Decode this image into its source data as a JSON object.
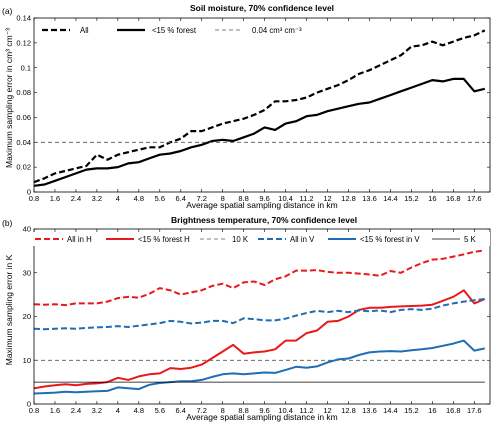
{
  "chart_data": [
    {
      "type": "line",
      "panel": "(a)",
      "title": "Soil moisture, 70% confidence level",
      "xlabel": "Average spatial sampling distance in km",
      "ylabel": "Maximum sampling error in cm³ cm⁻³",
      "xlim": [
        0.8,
        18.2
      ],
      "ylim": [
        0,
        0.14
      ],
      "xticks": [
        0.8,
        1.6,
        2.4,
        3.2,
        4,
        4.8,
        5.6,
        6.4,
        7.2,
        8,
        8.8,
        9.6,
        10.4,
        11.2,
        12,
        12.8,
        13.6,
        14.4,
        15.2,
        16,
        16.8,
        17.6
      ],
      "xtick_labels": [
        "0.8",
        "1.6",
        "2.4",
        "3.2",
        "4",
        "4.8",
        "5.6",
        "6.4",
        "7.2",
        "8",
        "8.8",
        "9.6",
        "10.4",
        "11.2",
        "12",
        "12.8",
        "13.6",
        "14.4",
        "15.2",
        "16",
        "16.8",
        "17.6"
      ],
      "yticks": [
        0,
        0.02,
        0.04,
        0.06,
        0.08,
        0.1,
        0.12,
        0.14
      ],
      "ytick_labels": [
        "0",
        "0.02",
        "0.04",
        "0.06",
        "0.08",
        "0.1",
        "0.12",
        "0.14"
      ],
      "grid": false,
      "legend_position": "top",
      "x": [
        0.8,
        1.2,
        1.6,
        2.0,
        2.4,
        2.8,
        3.2,
        3.6,
        4.0,
        4.4,
        4.8,
        5.2,
        5.6,
        6.0,
        6.4,
        6.8,
        7.2,
        7.6,
        8.0,
        8.4,
        8.8,
        9.2,
        9.6,
        10.0,
        10.4,
        10.8,
        11.2,
        11.6,
        12.0,
        12.4,
        12.8,
        13.2,
        13.6,
        14.0,
        14.4,
        14.8,
        15.2,
        15.6,
        16.0,
        16.4,
        16.8,
        17.2,
        17.6,
        18.0
      ],
      "series": [
        {
          "name": "All",
          "style": "dashed",
          "color": "#000000",
          "width": 2.2,
          "values": [
            0.008,
            0.011,
            0.015,
            0.017,
            0.019,
            0.021,
            0.03,
            0.026,
            0.03,
            0.032,
            0.034,
            0.036,
            0.036,
            0.04,
            0.043,
            0.049,
            0.049,
            0.052,
            0.055,
            0.057,
            0.059,
            0.062,
            0.066,
            0.073,
            0.073,
            0.074,
            0.076,
            0.08,
            0.083,
            0.086,
            0.09,
            0.095,
            0.098,
            0.102,
            0.106,
            0.11,
            0.117,
            0.118,
            0.121,
            0.118,
            0.121,
            0.124,
            0.126,
            0.13
          ]
        },
        {
          "name": "<15 % forest",
          "style": "solid",
          "color": "#000000",
          "width": 2.2,
          "values": [
            0.005,
            0.006,
            0.009,
            0.012,
            0.015,
            0.018,
            0.019,
            0.019,
            0.02,
            0.023,
            0.024,
            0.027,
            0.03,
            0.031,
            0.033,
            0.036,
            0.038,
            0.041,
            0.042,
            0.041,
            0.044,
            0.047,
            0.052,
            0.05,
            0.055,
            0.057,
            0.061,
            0.062,
            0.065,
            0.067,
            0.069,
            0.071,
            0.072,
            0.075,
            0.078,
            0.081,
            0.084,
            0.087,
            0.09,
            0.089,
            0.091,
            0.091,
            0.081,
            0.083
          ]
        },
        {
          "name": "0.04 cm³ cm⁻³",
          "style": "dashed-thin",
          "color": "#555555",
          "width": 0.8,
          "values": [
            0.04,
            0.04,
            0.04,
            0.04,
            0.04,
            0.04,
            0.04,
            0.04,
            0.04,
            0.04,
            0.04,
            0.04,
            0.04,
            0.04,
            0.04,
            0.04,
            0.04,
            0.04,
            0.04,
            0.04,
            0.04,
            0.04,
            0.04,
            0.04,
            0.04,
            0.04,
            0.04,
            0.04,
            0.04,
            0.04,
            0.04,
            0.04,
            0.04,
            0.04,
            0.04,
            0.04,
            0.04,
            0.04,
            0.04,
            0.04,
            0.04,
            0.04,
            0.04,
            0.04
          ]
        }
      ]
    },
    {
      "type": "line",
      "panel": "(b)",
      "title": "Brightness temperature, 70% confidence level",
      "xlabel": "Average spatial sampling distance in km",
      "ylabel": "Maximum sampling error in K",
      "xlim": [
        0.8,
        18.2
      ],
      "ylim": [
        0,
        40
      ],
      "xticks": [
        0.8,
        1.6,
        2.4,
        3.2,
        4,
        4.8,
        5.6,
        6.4,
        7.2,
        8,
        8.8,
        9.6,
        10.4,
        11.2,
        12,
        12.8,
        13.6,
        14.4,
        15.2,
        16,
        16.8,
        17.6
      ],
      "xtick_labels": [
        "0.8",
        "1.6",
        "2.4",
        "3.2",
        "4",
        "4.8",
        "5.6",
        "6.4",
        "7.2",
        "8",
        "8.8",
        "9.6",
        "10.4",
        "11.2",
        "12",
        "12.8",
        "13.6",
        "14.4",
        "15.2",
        "16",
        "16.8",
        "17.6"
      ],
      "yticks": [
        0,
        10,
        20,
        30,
        40
      ],
      "ytick_labels": [
        "0",
        "10",
        "20",
        "30",
        "40"
      ],
      "grid": false,
      "legend_position": "top",
      "x": [
        0.8,
        1.2,
        1.6,
        2.0,
        2.4,
        2.8,
        3.2,
        3.6,
        4.0,
        4.4,
        4.8,
        5.2,
        5.6,
        6.0,
        6.4,
        6.8,
        7.2,
        7.6,
        8.0,
        8.4,
        8.8,
        9.2,
        9.6,
        10.0,
        10.4,
        10.8,
        11.2,
        11.6,
        12.0,
        12.4,
        12.8,
        13.2,
        13.6,
        14.0,
        14.4,
        14.8,
        15.2,
        15.6,
        16.0,
        16.4,
        16.8,
        17.2,
        17.6,
        18.0
      ],
      "series": [
        {
          "name": "All in H",
          "style": "dashed",
          "color": "#e8191c",
          "width": 2.0,
          "values": [
            22.8,
            22.7,
            22.8,
            22.6,
            23.0,
            23.0,
            23.0,
            23.4,
            24.2,
            24.5,
            24.3,
            25.2,
            26.5,
            26.0,
            25.0,
            25.5,
            26.0,
            27.0,
            27.5,
            26.5,
            27.8,
            28.0,
            27.2,
            28.5,
            29.2,
            30.5,
            30.5,
            30.6,
            30.2,
            30.0,
            30.0,
            29.8,
            29.6,
            29.3,
            30.4,
            30.0,
            31.2,
            32.2,
            33.0,
            33.2,
            33.7,
            34.2,
            34.8,
            35.1
          ]
        },
        {
          "name": "<15 % forest H",
          "style": "solid",
          "color": "#e8191c",
          "width": 2.0,
          "values": [
            3.6,
            4.0,
            4.3,
            4.5,
            4.3,
            4.6,
            4.7,
            5.0,
            6.0,
            5.5,
            6.3,
            6.8,
            7.0,
            8.2,
            8.0,
            8.3,
            9.0,
            10.5,
            12.0,
            13.5,
            11.5,
            11.8,
            12.0,
            12.5,
            14.5,
            14.5,
            16.2,
            16.8,
            18.8,
            19.0,
            20.0,
            21.5,
            22.0,
            22.0,
            22.2,
            22.3,
            22.4,
            22.5,
            22.7,
            23.6,
            24.5,
            26.0,
            23.0,
            24.0
          ]
        },
        {
          "name": "10 K",
          "style": "dashed-thin",
          "color": "#555555",
          "width": 0.8,
          "values": [
            10,
            10,
            10,
            10,
            10,
            10,
            10,
            10,
            10,
            10,
            10,
            10,
            10,
            10,
            10,
            10,
            10,
            10,
            10,
            10,
            10,
            10,
            10,
            10,
            10,
            10,
            10,
            10,
            10,
            10,
            10,
            10,
            10,
            10,
            10,
            10,
            10,
            10,
            10,
            10,
            10,
            10,
            10,
            10
          ]
        },
        {
          "name": "All in V",
          "style": "dashed",
          "color": "#1f6db5",
          "width": 2.0,
          "values": [
            17.2,
            17.1,
            17.2,
            17.3,
            17.2,
            17.4,
            17.5,
            17.6,
            17.8,
            17.6,
            17.9,
            18.2,
            18.5,
            19.0,
            18.8,
            18.4,
            18.6,
            19.0,
            19.0,
            18.5,
            19.6,
            19.4,
            19.1,
            19.1,
            19.5,
            20.2,
            20.8,
            21.3,
            21.0,
            21.3,
            21.0,
            21.4,
            21.2,
            21.4,
            21.0,
            21.5,
            21.7,
            21.5,
            21.8,
            22.5,
            23.0,
            23.4,
            23.7,
            24.0
          ]
        },
        {
          "name": "<15 % forest in V",
          "style": "solid",
          "color": "#1f6db5",
          "width": 2.0,
          "values": [
            2.4,
            2.5,
            2.6,
            2.8,
            2.7,
            2.8,
            2.9,
            3.0,
            3.8,
            3.6,
            3.4,
            4.4,
            4.8,
            5.0,
            5.2,
            5.2,
            5.5,
            6.2,
            6.8,
            7.0,
            6.8,
            7.0,
            7.2,
            7.1,
            7.8,
            8.5,
            8.3,
            8.6,
            9.5,
            10.2,
            10.4,
            11.2,
            11.8,
            12.0,
            12.1,
            12.0,
            12.3,
            12.5,
            12.8,
            13.3,
            13.8,
            14.5,
            12.2,
            12.7
          ]
        },
        {
          "name": "5 K",
          "style": "solid-thin",
          "color": "#000000",
          "width": 0.8,
          "values": [
            5,
            5,
            5,
            5,
            5,
            5,
            5,
            5,
            5,
            5,
            5,
            5,
            5,
            5,
            5,
            5,
            5,
            5,
            5,
            5,
            5,
            5,
            5,
            5,
            5,
            5,
            5,
            5,
            5,
            5,
            5,
            5,
            5,
            5,
            5,
            5,
            5,
            5,
            5,
            5,
            5,
            5,
            5,
            5
          ]
        }
      ]
    }
  ]
}
